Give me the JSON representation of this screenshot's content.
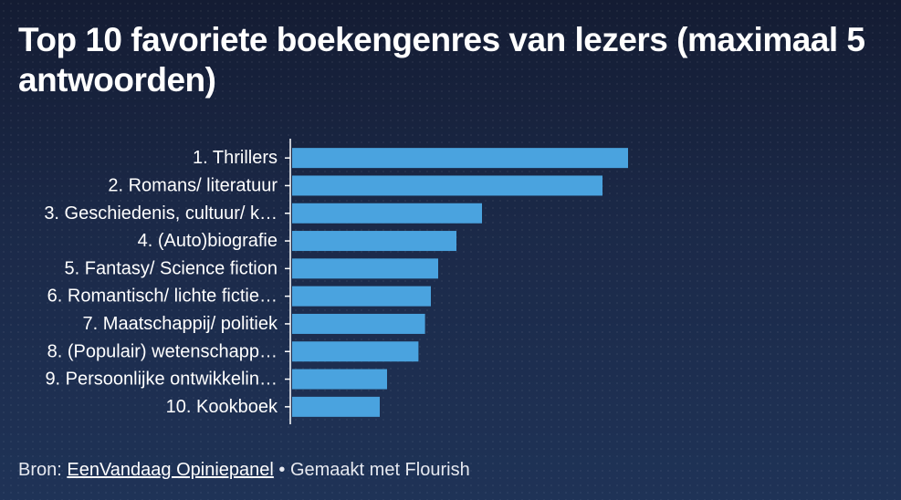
{
  "chart_data": {
    "type": "bar",
    "orientation": "horizontal",
    "title": "Top 10 favoriete boekengenres van lezers (maximaal 5 antwoorden)",
    "categories": [
      "1. Thrillers",
      "2. Romans/ literatuur",
      "3. Geschiedenis, cultuur/ k…",
      "4. (Auto)biografie",
      "5. Fantasy/ Science fiction",
      "6. Romantisch/ lichte fictie…",
      "7. Maatschappij/ politiek",
      "8. (Populair) wetenschapp…",
      "9. Persoonlijke ontwikkelin…",
      "10. Kookboek"
    ],
    "values": [
      46,
      42.5,
      26,
      22.5,
      20,
      19,
      18.2,
      17.3,
      13,
      12
    ],
    "xlim": [
      0,
      50
    ],
    "bar_color": "#4aa3df",
    "grid": false,
    "legend": "none"
  },
  "footer": {
    "source_prefix": "Bron: ",
    "source_link": "EenVandaag Opiniepanel",
    "separator_text": " • Gemaakt met Flourish"
  }
}
